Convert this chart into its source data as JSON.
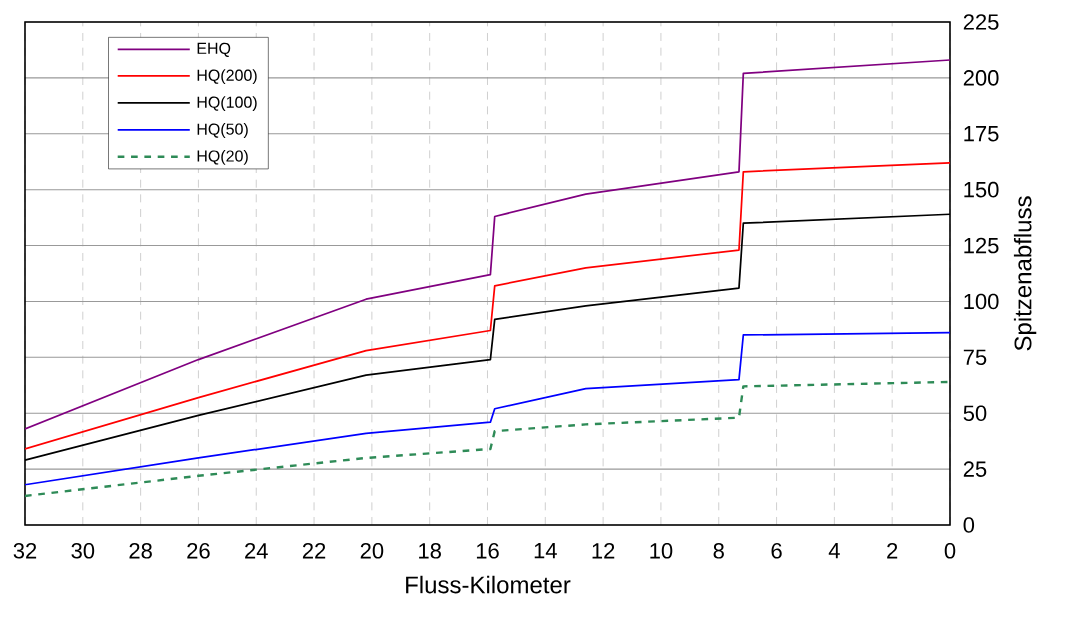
{
  "chart_data": {
    "type": "line",
    "xlabel": "Fluss-Kilometer",
    "ylabel": "Spitzenabfluss",
    "x": [
      32,
      26,
      20.2,
      15.9,
      15.75,
      12.6,
      7.3,
      7.15,
      0
    ],
    "xlim": [
      32,
      0
    ],
    "xticks": [
      32,
      30,
      28,
      26,
      24,
      22,
      20,
      18,
      16,
      14,
      12,
      10,
      8,
      6,
      4,
      2,
      0
    ],
    "ylim": [
      0,
      225
    ],
    "yticks": [
      0,
      25,
      50,
      75,
      100,
      125,
      150,
      175,
      200,
      225
    ],
    "grid": true,
    "legend": "top left",
    "marker": "none",
    "series": [
      {
        "name": "EHQ",
        "color": "#800080",
        "values": [
          43,
          74,
          101,
          112,
          138,
          148,
          158,
          202,
          208
        ]
      },
      {
        "name": "HQ(200)",
        "color": "#ff0000",
        "values": [
          34,
          57,
          78,
          87,
          107,
          115,
          123,
          158,
          162
        ]
      },
      {
        "name": "HQ(100)",
        "color": "#000000",
        "values": [
          29,
          49,
          67,
          74,
          92,
          98,
          106,
          135,
          139
        ]
      },
      {
        "name": "HQ(50)",
        "color": "#0000ff",
        "values": [
          18,
          30,
          41,
          46,
          52,
          61,
          65,
          85,
          86
        ]
      },
      {
        "name": "HQ(20)",
        "color": "#2e8b57",
        "line_style": "dashed",
        "values": [
          13,
          22,
          30,
          34,
          42,
          45,
          48,
          62,
          64
        ]
      }
    ]
  }
}
